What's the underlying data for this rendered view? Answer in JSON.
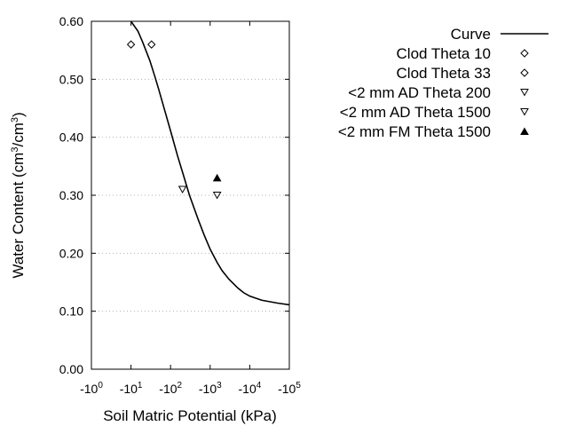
{
  "chart_data": {
    "type": "scatter",
    "title": "",
    "xlabel": "Soil Matric Potential (kPa)",
    "ylabel_main": "Water Content (cm",
    "ylabel_sup1": "3",
    "ylabel_mid": "/cm",
    "ylabel_sup2": "3",
    "ylabel_end": ")",
    "x_scale": "log",
    "xlim_kpa": [
      1,
      100000
    ],
    "ylim": [
      0,
      0.6
    ],
    "y_ticks": [
      {
        "value": 0.0,
        "label": "0.00"
      },
      {
        "value": 0.1,
        "label": "0.10"
      },
      {
        "value": 0.2,
        "label": "0.20"
      },
      {
        "value": 0.3,
        "label": "0.30"
      },
      {
        "value": 0.4,
        "label": "0.40"
      },
      {
        "value": 0.5,
        "label": "0.50"
      },
      {
        "value": 0.6,
        "label": "0.60"
      }
    ],
    "x_ticks": [
      {
        "value": 1,
        "base": "-10",
        "exp": "0"
      },
      {
        "value": 10,
        "base": "-10",
        "exp": "1"
      },
      {
        "value": 100,
        "base": "-10",
        "exp": "2"
      },
      {
        "value": 1000,
        "base": "-10",
        "exp": "3"
      },
      {
        "value": 10000,
        "base": "-10",
        "exp": "4"
      },
      {
        "value": 100000,
        "base": "-10",
        "exp": "5"
      }
    ],
    "grid": "horizontal-dotted",
    "legend_position": "right",
    "curve": {
      "name": "Curve",
      "color": "#000000",
      "points": [
        [
          8,
          0.605
        ],
        [
          10,
          0.6
        ],
        [
          15,
          0.583
        ],
        [
          20,
          0.563
        ],
        [
          30,
          0.532
        ],
        [
          40,
          0.505
        ],
        [
          50,
          0.483
        ],
        [
          70,
          0.448
        ],
        [
          100,
          0.411
        ],
        [
          150,
          0.368
        ],
        [
          200,
          0.34
        ],
        [
          300,
          0.3
        ],
        [
          500,
          0.258
        ],
        [
          700,
          0.232
        ],
        [
          1000,
          0.207
        ],
        [
          1500,
          0.184
        ],
        [
          2000,
          0.17
        ],
        [
          3000,
          0.155
        ],
        [
          5000,
          0.14
        ],
        [
          7000,
          0.132
        ],
        [
          10000,
          0.126
        ],
        [
          20000,
          0.119
        ],
        [
          50000,
          0.114
        ],
        [
          100000,
          0.111
        ]
      ]
    },
    "series": [
      {
        "name": "Clod Theta 10",
        "marker": "diamond-open",
        "points": [
          [
            10,
            0.56
          ]
        ]
      },
      {
        "name": "Clod Theta 33",
        "marker": "diamond-open",
        "points": [
          [
            33,
            0.56
          ]
        ]
      },
      {
        "name": "<2 mm AD Theta 200",
        "marker": "triangle-down-open",
        "points": [
          [
            200,
            0.31
          ]
        ]
      },
      {
        "name": "<2 mm AD Theta 1500",
        "marker": "triangle-down-open",
        "points": [
          [
            1500,
            0.3
          ]
        ]
      },
      {
        "name": "<2 mm FM Theta 1500",
        "marker": "triangle-up-filled",
        "points": [
          [
            1500,
            0.33
          ]
        ]
      }
    ]
  }
}
